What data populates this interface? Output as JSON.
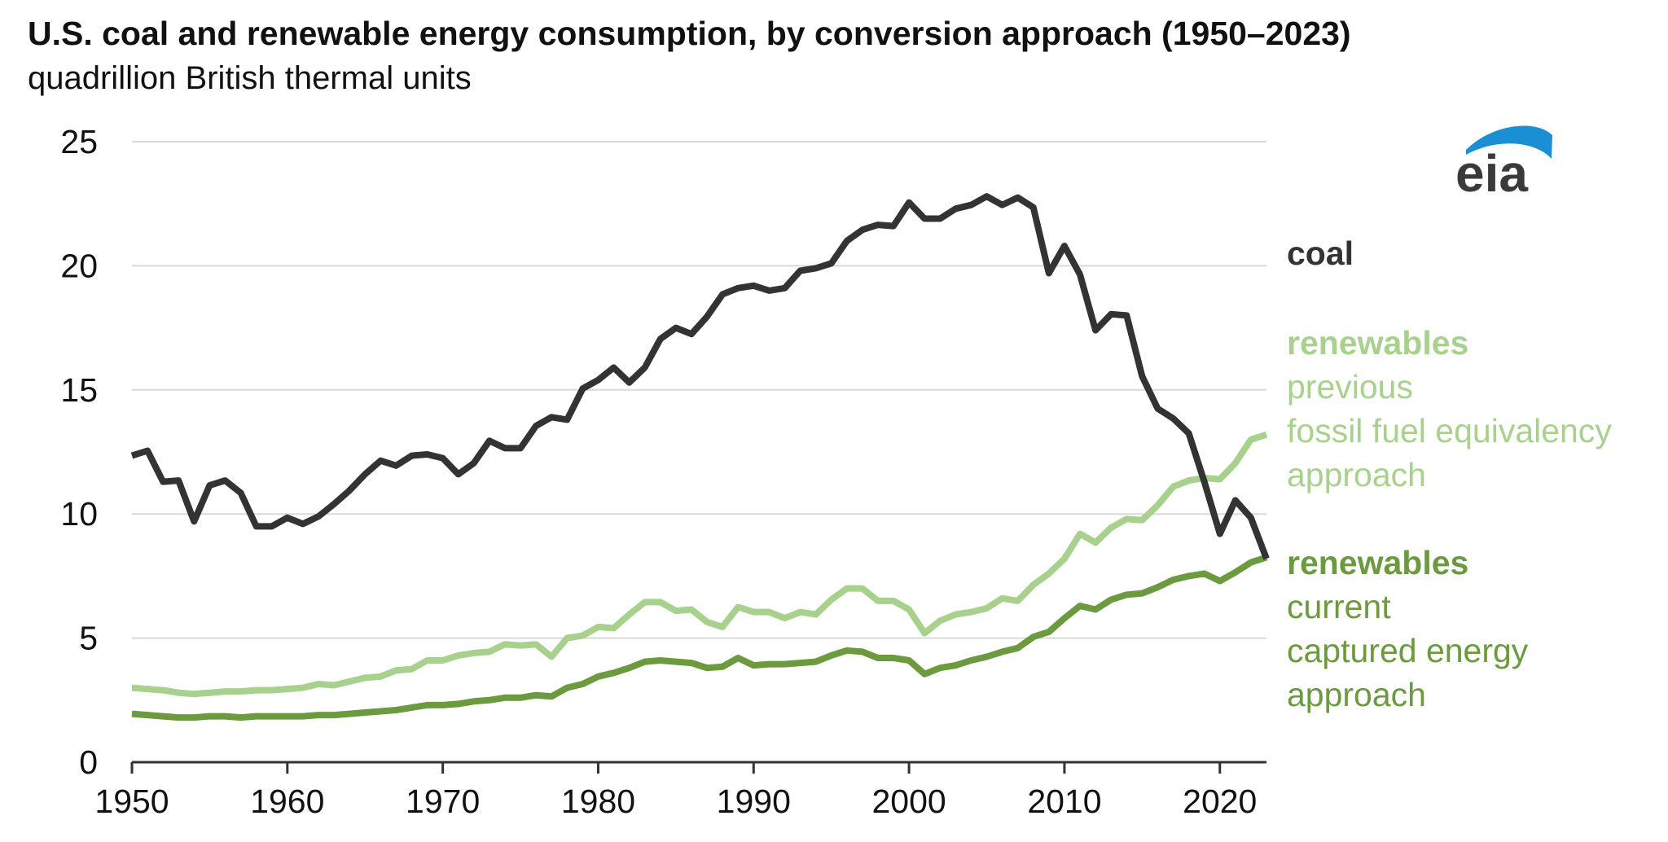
{
  "title": "U.S. coal and renewable energy consumption, by conversion approach (1950–2023)",
  "subtitle": "quadrillion British thermal units",
  "logo_text": "eia",
  "colors": {
    "coal": "#333333",
    "renewables_previous": "#a9d18e",
    "renewables_current": "#6b9a3f",
    "grid": "#d9d9d9",
    "axis": "#333333",
    "logo_arc": "#1b8fd3"
  },
  "chart_data": {
    "type": "line",
    "title": "U.S. coal and renewable energy consumption, by conversion approach (1950–2023)",
    "ylabel": "quadrillion British thermal units",
    "xlabel": "",
    "xlim": [
      1950,
      2023
    ],
    "ylim": [
      0,
      25
    ],
    "grid": true,
    "legend": "direct labels at right",
    "x_ticks": [
      "1950",
      "1960",
      "1970",
      "1980",
      "1990",
      "2000",
      "2010",
      "2020"
    ],
    "x_tick_values": [
      1950,
      1960,
      1970,
      1980,
      1990,
      2000,
      2010,
      2020
    ],
    "y_ticks": [
      "0",
      "5",
      "10",
      "15",
      "20",
      "25"
    ],
    "y_tick_values": [
      0,
      5,
      10,
      15,
      20,
      25
    ],
    "x": [
      1950,
      1951,
      1952,
      1953,
      1954,
      1955,
      1956,
      1957,
      1958,
      1959,
      1960,
      1961,
      1962,
      1963,
      1964,
      1965,
      1966,
      1967,
      1968,
      1969,
      1970,
      1971,
      1972,
      1973,
      1974,
      1975,
      1976,
      1977,
      1978,
      1979,
      1980,
      1981,
      1982,
      1983,
      1984,
      1985,
      1986,
      1987,
      1988,
      1989,
      1990,
      1991,
      1992,
      1993,
      1994,
      1995,
      1996,
      1997,
      1998,
      1999,
      2000,
      2001,
      2002,
      2003,
      2004,
      2005,
      2006,
      2007,
      2008,
      2009,
      2010,
      2011,
      2012,
      2013,
      2014,
      2015,
      2016,
      2017,
      2018,
      2019,
      2020,
      2021,
      2022,
      2023
    ],
    "series": [
      {
        "key": "coal",
        "label_lines": [
          "coal"
        ],
        "values": [
          12.35,
          12.55,
          11.3,
          11.35,
          9.7,
          11.15,
          11.35,
          10.85,
          9.5,
          9.5,
          9.85,
          9.6,
          9.9,
          10.4,
          10.95,
          11.6,
          12.15,
          11.95,
          12.35,
          12.4,
          12.25,
          11.6,
          12.05,
          12.95,
          12.65,
          12.65,
          13.55,
          13.9,
          13.8,
          15.05,
          15.4,
          15.9,
          15.3,
          15.9,
          17.05,
          17.5,
          17.25,
          17.95,
          18.85,
          19.1,
          19.2,
          19.0,
          19.1,
          19.8,
          19.9,
          20.1,
          21.0,
          21.45,
          21.65,
          21.6,
          22.55,
          21.9,
          21.9,
          22.3,
          22.45,
          22.8,
          22.45,
          22.75,
          22.35,
          19.7,
          20.8,
          19.65,
          17.4,
          18.05,
          18.0,
          15.55,
          14.25,
          13.85,
          13.25,
          11.3,
          9.2,
          10.55,
          9.85,
          8.2
        ]
      },
      {
        "key": "renewables_previous",
        "label_lines": [
          "renewables",
          "previous",
          "fossil fuel equivalency",
          "approach"
        ],
        "values": [
          3.0,
          2.95,
          2.9,
          2.8,
          2.75,
          2.8,
          2.85,
          2.85,
          2.9,
          2.9,
          2.95,
          3.0,
          3.15,
          3.1,
          3.25,
          3.4,
          3.45,
          3.7,
          3.75,
          4.1,
          4.1,
          4.3,
          4.4,
          4.45,
          4.75,
          4.7,
          4.75,
          4.25,
          5.0,
          5.1,
          5.45,
          5.4,
          5.95,
          6.45,
          6.45,
          6.1,
          6.15,
          5.65,
          5.45,
          6.25,
          6.05,
          6.05,
          5.8,
          6.05,
          5.95,
          6.55,
          7.0,
          7.0,
          6.5,
          6.5,
          6.15,
          5.2,
          5.7,
          5.95,
          6.05,
          6.2,
          6.6,
          6.5,
          7.15,
          7.6,
          8.2,
          9.2,
          8.85,
          9.45,
          9.8,
          9.75,
          10.35,
          11.1,
          11.35,
          11.45,
          11.4,
          12.05,
          13.0,
          13.2
        ]
      },
      {
        "key": "renewables_current",
        "label_lines": [
          "renewables",
          "current",
          "captured energy",
          "approach"
        ],
        "values": [
          1.95,
          1.9,
          1.85,
          1.8,
          1.8,
          1.85,
          1.85,
          1.8,
          1.85,
          1.85,
          1.85,
          1.85,
          1.9,
          1.9,
          1.95,
          2.0,
          2.05,
          2.1,
          2.2,
          2.3,
          2.3,
          2.35,
          2.45,
          2.5,
          2.6,
          2.6,
          2.7,
          2.65,
          3.0,
          3.15,
          3.45,
          3.6,
          3.8,
          4.05,
          4.1,
          4.05,
          4.0,
          3.8,
          3.85,
          4.2,
          3.9,
          3.95,
          3.95,
          4.0,
          4.05,
          4.3,
          4.5,
          4.45,
          4.2,
          4.2,
          4.1,
          3.55,
          3.8,
          3.9,
          4.1,
          4.25,
          4.45,
          4.6,
          5.05,
          5.25,
          5.8,
          6.3,
          6.15,
          6.55,
          6.75,
          6.8,
          7.05,
          7.35,
          7.5,
          7.6,
          7.3,
          7.65,
          8.05,
          8.25
        ]
      }
    ]
  }
}
